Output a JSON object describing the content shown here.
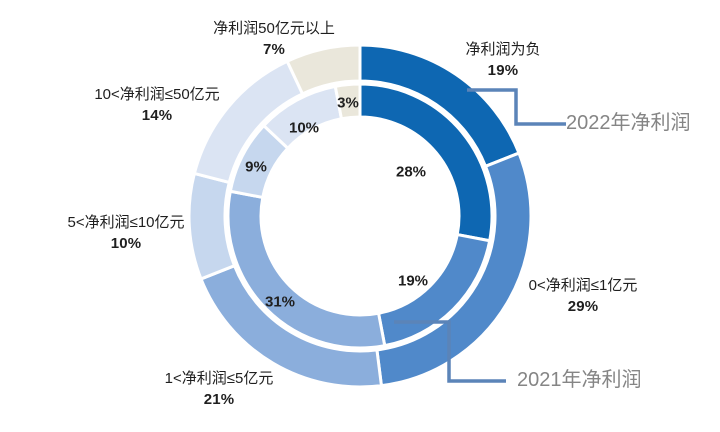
{
  "chart_data": {
    "type": "pie",
    "subtype": "doughnut-double-ring",
    "title": "",
    "categories": [
      "净利润为负",
      "0<净利润≤1亿元",
      "1<净利润≤5亿元",
      "5<净利润≤10亿元",
      "10<净利润≤50亿元",
      "净利润50亿元以上"
    ],
    "series": [
      {
        "name": "2022年净利润",
        "ring": "outer",
        "values": [
          19,
          29,
          21,
          10,
          14,
          7
        ]
      },
      {
        "name": "2021年净利润",
        "ring": "inner",
        "values": [
          28,
          19,
          31,
          9,
          10,
          3
        ]
      }
    ],
    "unit": "%",
    "start_angle_deg": 0,
    "direction": "clockwise",
    "legend_position": "callouts",
    "colors": [
      "#0E67B2",
      "#5089CA",
      "#8BAEDC",
      "#C6D7EE",
      "#DBE4F3",
      "#EAE7DB"
    ],
    "segment_border_color": "#FFFFFF",
    "callout_line_color": "#5B84B8",
    "series_label_color": "#858585",
    "data_label_color": "#1F1F1F"
  }
}
